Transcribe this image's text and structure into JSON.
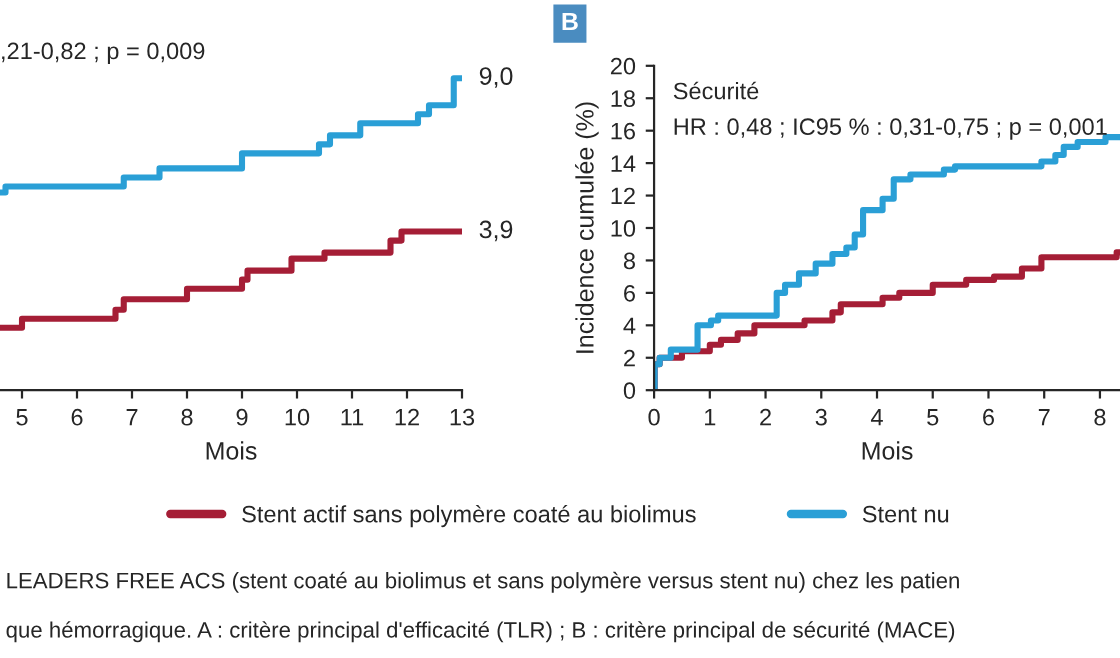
{
  "chart_data": [
    {
      "type": "step",
      "xlabel": "Mois",
      "xlim": [
        4.6,
        13
      ],
      "xticks": [
        5,
        6,
        7,
        8,
        9,
        10,
        11,
        12,
        13
      ],
      "tick_labels": "x",
      "legend": "bottom",
      "annotations": [
        ",21-0,82 ; p = 0,009",
        "LEADERS FREE ACS (stent coaté au biolimus et sans polymère versus stent nu) chez les patien",
        "que hémorragique. A : critère principal d'efficacité (TLR) ; B : critère principal de sécurité (MACE)"
      ],
      "series": [
        {
          "name": "Stent actif sans polymère coaté au biolimus",
          "color": "#a51e36",
          "x": [
            4.6,
            5.0,
            6.7,
            6.85,
            8.0,
            9.0,
            9.1,
            9.9,
            10.5,
            11.7,
            11.9,
            13.0
          ],
          "values": [
            0.7,
            1.0,
            1.3,
            1.65,
            2.0,
            2.3,
            2.6,
            3.0,
            3.2,
            3.6,
            3.9,
            3.9
          ],
          "value_labels": [
            null,
            null,
            null,
            null,
            null,
            null,
            null,
            null,
            null,
            null,
            null,
            "3,9"
          ]
        },
        {
          "name": "Stent nu",
          "color": "#2a9fd6",
          "x": [
            4.6,
            4.7,
            6.85,
            7.5,
            9.0,
            10.4,
            10.6,
            11.15,
            12.2,
            12.4,
            12.85,
            13.0
          ],
          "values": [
            5.2,
            5.4,
            5.7,
            6.0,
            6.5,
            6.8,
            7.1,
            7.5,
            7.8,
            8.1,
            9.0,
            9.0
          ],
          "value_labels": [
            null,
            null,
            null,
            null,
            null,
            null,
            null,
            null,
            null,
            null,
            null,
            "9,0"
          ]
        }
      ]
    },
    {
      "type": "step",
      "title": "B",
      "subtitle": "Sécurité",
      "xlabel": "Mois",
      "ylabel": "Incidence cumulée (%)",
      "xlim": [
        0,
        8.36
      ],
      "xticks": [
        0,
        1,
        2,
        3,
        4,
        5,
        6,
        7,
        8
      ],
      "ylim": [
        0,
        20
      ],
      "yticks": [
        0,
        2,
        4,
        6,
        8,
        10,
        12,
        14,
        16,
        18,
        20
      ],
      "annotations": [
        "HR : 0,48 ; IC95 % : 0,31-0,75 ; p = 0,001"
      ],
      "series": [
        {
          "color": "#a51e36",
          "x": [
            0,
            0.01,
            0.1,
            0.5,
            1.0,
            1.2,
            1.5,
            1.8,
            2.7,
            3.2,
            3.35,
            4.1,
            4.4,
            5.0,
            5.6,
            6.1,
            6.6,
            6.95,
            8.3,
            8.36
          ],
          "values": [
            0,
            1.6,
            2.0,
            2.4,
            2.8,
            3.1,
            3.5,
            4.0,
            4.3,
            4.8,
            5.3,
            5.7,
            6.0,
            6.5,
            6.8,
            7.0,
            7.5,
            8.2,
            8.5,
            8.5
          ]
        },
        {
          "color": "#2a9fd6",
          "x": [
            0,
            0.01,
            0.1,
            0.3,
            0.78,
            1.02,
            1.15,
            2.2,
            2.35,
            2.6,
            2.9,
            3.2,
            3.45,
            3.6,
            3.75,
            4.1,
            4.3,
            4.6,
            5.2,
            5.4,
            6.95,
            7.2,
            7.35,
            7.6,
            8.1,
            8.36
          ],
          "values": [
            0,
            1.6,
            2.0,
            2.5,
            4.0,
            4.3,
            4.6,
            6.0,
            6.5,
            7.2,
            7.8,
            8.4,
            8.8,
            9.6,
            11.1,
            11.8,
            13.0,
            13.3,
            13.6,
            13.8,
            14.1,
            14.5,
            15.0,
            15.3,
            15.6,
            15.6
          ]
        }
      ]
    }
  ]
}
